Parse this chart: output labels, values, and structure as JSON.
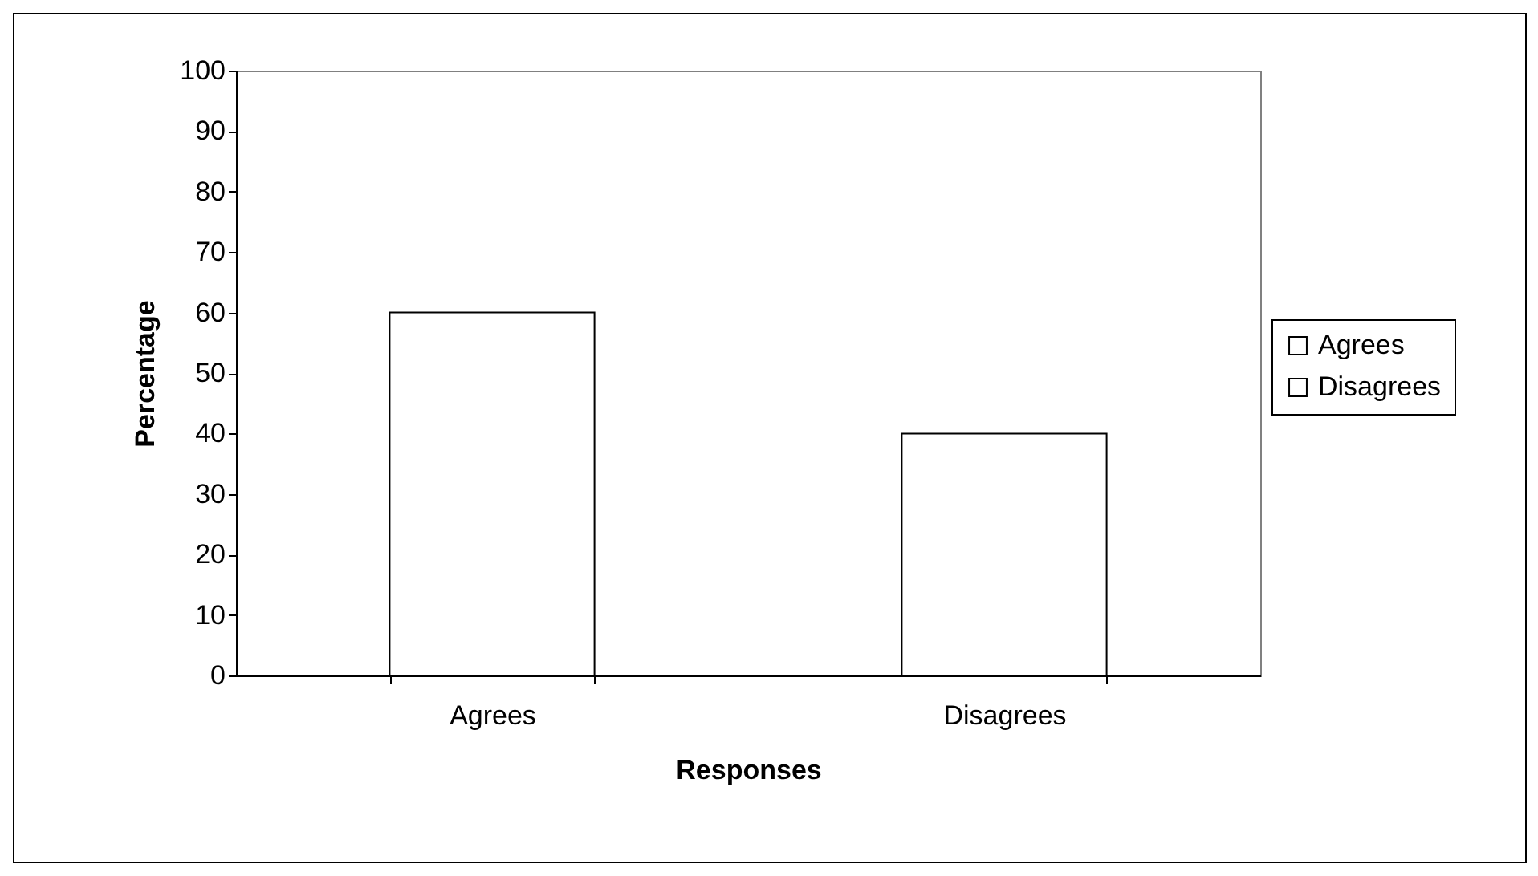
{
  "chart_data": {
    "type": "bar",
    "xlabel": "Responses",
    "ylabel": "Percentage",
    "categories": [
      "Agrees",
      "Disagrees"
    ],
    "series": [
      {
        "name": "Agrees",
        "color": "#ffffff",
        "values": [
          60,
          null
        ]
      },
      {
        "name": "Disagrees",
        "color": "#ffffff",
        "values": [
          null,
          40
        ]
      }
    ],
    "ylim": [
      0,
      100
    ],
    "yticks": [
      0,
      10,
      20,
      30,
      40,
      50,
      60,
      70,
      80,
      90,
      100
    ],
    "grid": false,
    "legend": "right"
  }
}
